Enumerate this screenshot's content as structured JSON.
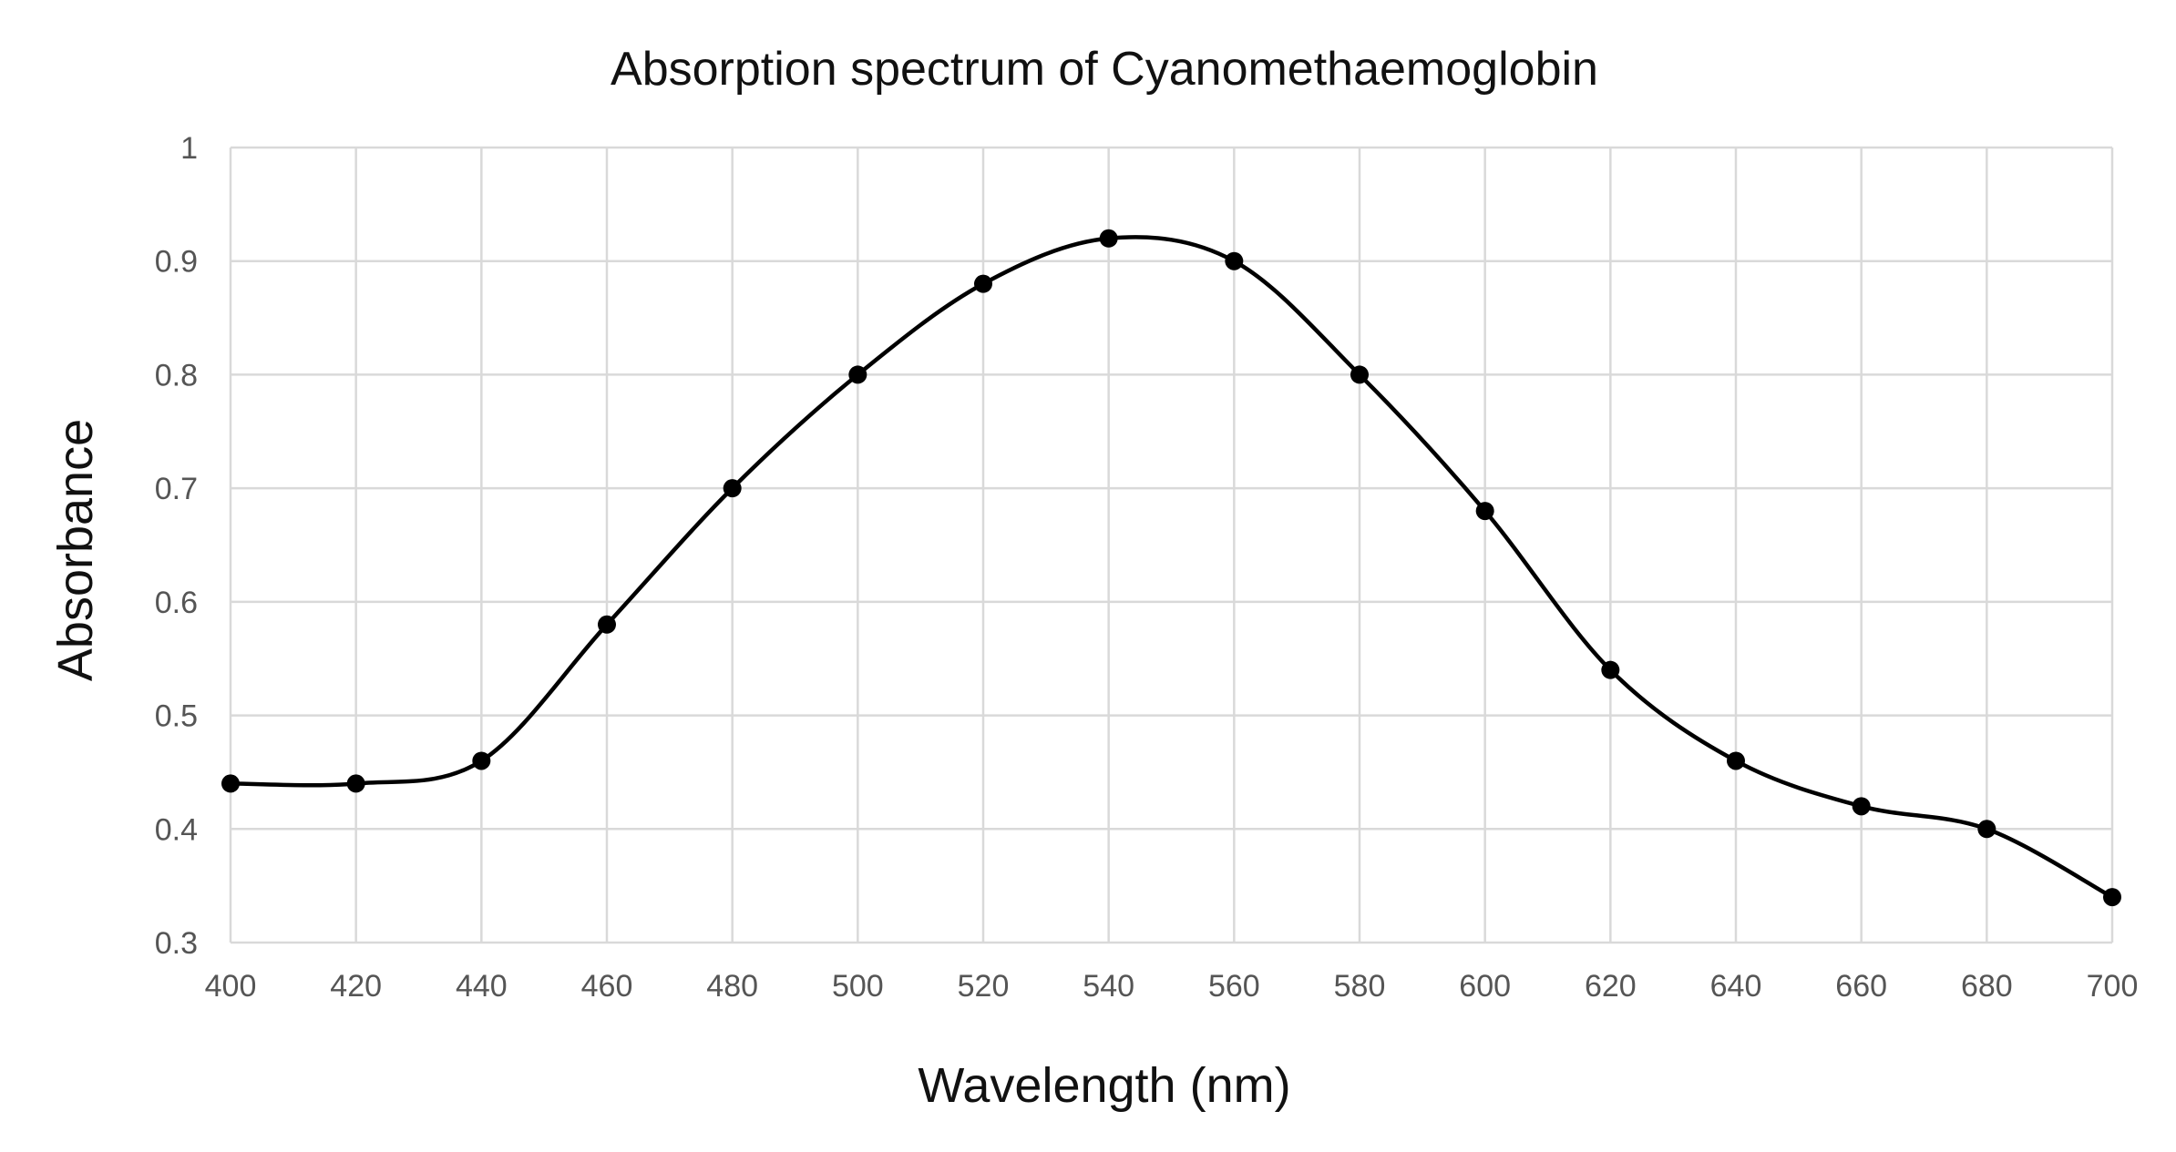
{
  "chart_data": {
    "type": "scatter",
    "title": "Absorption spectrum of Cyanomethaemoglobin",
    "xlabel": "Wavelength (nm)",
    "ylabel": "Absorbance",
    "xlim": [
      400,
      700
    ],
    "ylim": [
      0.3,
      1
    ],
    "xticks": [
      "400",
      "420",
      "440",
      "460",
      "480",
      "500",
      "520",
      "540",
      "560",
      "580",
      "600",
      "620",
      "640",
      "660",
      "680",
      "700"
    ],
    "yticks": [
      "0.3",
      "0.4",
      "0.5",
      "0.6",
      "0.7",
      "0.8",
      "0.9",
      "1"
    ],
    "grid": true,
    "smooth_line": true,
    "line_color": "#000000",
    "marker_color": "#000000",
    "series": [
      {
        "x": [
          400,
          420,
          440,
          460,
          480,
          500,
          520,
          540,
          560,
          580,
          600,
          620,
          640,
          660,
          680,
          700
        ],
        "y": [
          0.44,
          0.44,
          0.46,
          0.58,
          0.7,
          0.8,
          0.88,
          0.92,
          0.9,
          0.8,
          0.68,
          0.54,
          0.46,
          0.42,
          0.4,
          0.34
        ]
      }
    ]
  }
}
